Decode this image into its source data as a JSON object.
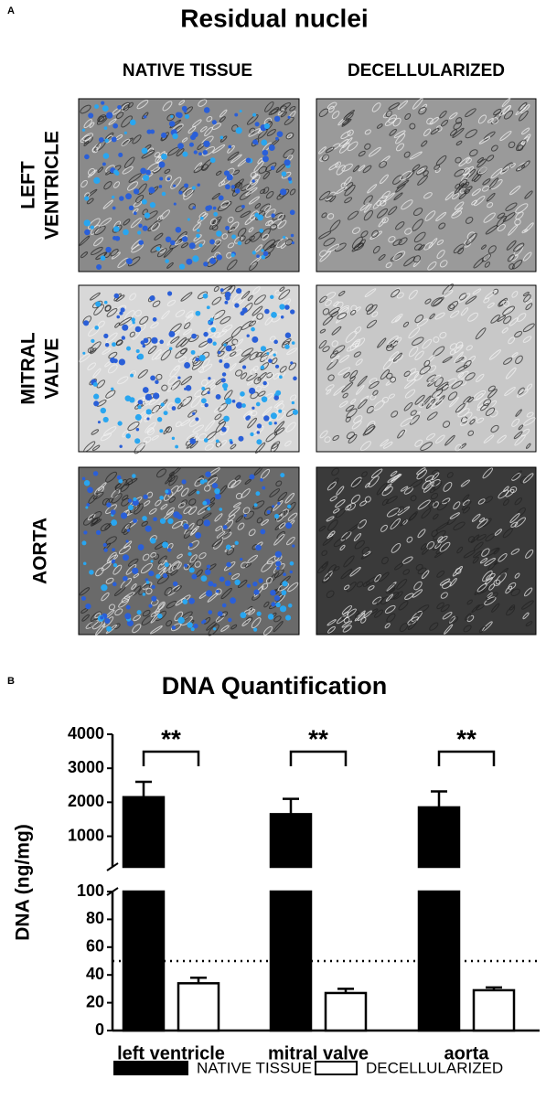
{
  "panel_a": {
    "label": "A",
    "title": "Residual nuclei",
    "columns": [
      "NATIVE TISSUE",
      "DECELLULARIZED"
    ],
    "rows": [
      [
        "LEFT",
        "VENTRICLE"
      ],
      [
        "MITRAL",
        "VALVE"
      ],
      [
        "AORTA"
      ]
    ]
  },
  "chart_data": {
    "type": "broken-bar",
    "label": "B",
    "title": "DNA Quantification",
    "y_label": "DNA (ng/mg)",
    "categories": [
      "left ventricle",
      "mitral valve",
      "aorta"
    ],
    "series": [
      {
        "name": "NATIVE TISSUE",
        "color": "#000000",
        "values": [
          2150,
          1650,
          1850
        ],
        "errors": [
          450,
          450,
          470
        ]
      },
      {
        "name": "DECELLULARIZED",
        "color": "#ffffff",
        "values": [
          34,
          27,
          29
        ],
        "errors": [
          4,
          3,
          2
        ]
      }
    ],
    "ylim": [
      0,
      100
    ],
    "yticks": [
      0,
      20,
      40,
      60,
      80,
      100
    ],
    "ylim_upper": [
      100,
      4000
    ],
    "yticks_upper": [
      1000,
      2000,
      3000,
      4000
    ],
    "reference_line": 50,
    "annotations": [
      "**",
      "**",
      "**"
    ]
  }
}
